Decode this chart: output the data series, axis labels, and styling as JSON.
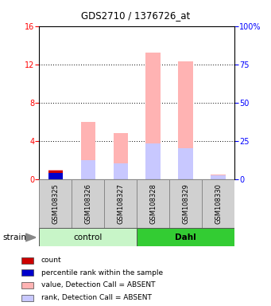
{
  "title": "GDS2710 / 1376726_at",
  "samples": [
    "GSM108325",
    "GSM108326",
    "GSM108327",
    "GSM108328",
    "GSM108329",
    "GSM108330"
  ],
  "group_colors": {
    "control": "#c8f5c8",
    "Dahl": "#33cc33"
  },
  "ylim_left": [
    0,
    16
  ],
  "ylim_right": [
    0,
    100
  ],
  "yticks_left": [
    0,
    4,
    8,
    12,
    16
  ],
  "yticks_right": [
    0,
    25,
    50,
    75,
    100
  ],
  "ytick_labels_right": [
    "0",
    "25",
    "50",
    "75",
    "100%"
  ],
  "value_absent": [
    1.0,
    6.0,
    4.8,
    13.2,
    12.3,
    0.5
  ],
  "rank_absent": [
    0.75,
    2.0,
    1.6,
    3.7,
    3.2,
    0.35
  ],
  "count_val": [
    0.9,
    0.0,
    0.0,
    0.0,
    0.0,
    0.0
  ],
  "percentile_val": [
    0.6,
    0.0,
    0.0,
    0.0,
    0.0,
    0.0
  ],
  "color_value_absent": "#ffb3b3",
  "color_rank_absent": "#c8c8ff",
  "color_count": "#cc0000",
  "color_percentile": "#0000cc",
  "bar_width": 0.45,
  "label_count": "count",
  "label_percentile": "percentile rank within the sample",
  "label_value_absent": "value, Detection Call = ABSENT",
  "label_rank_absent": "rank, Detection Call = ABSENT",
  "sample_box_color": "#d0d0d0",
  "sample_box_border": "#888888",
  "bg_color": "#ffffff"
}
